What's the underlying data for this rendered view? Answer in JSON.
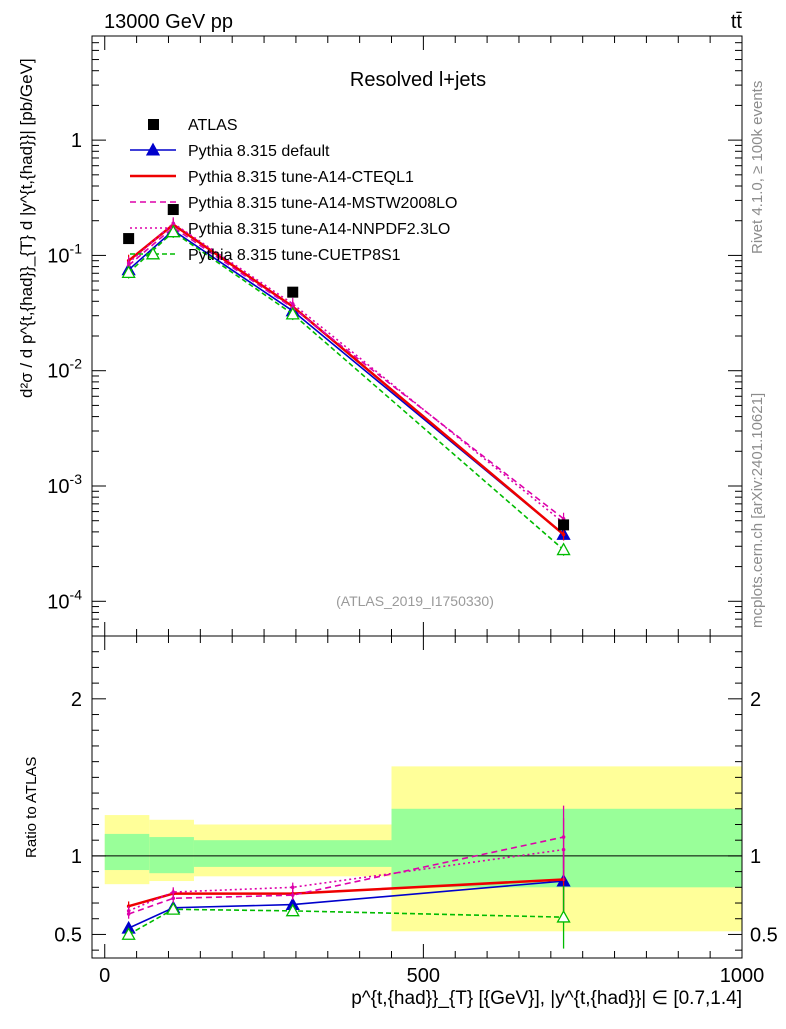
{
  "header": {
    "energy": "13000 GeV pp",
    "process": "tt̄"
  },
  "side_labels": {
    "rivet": "Rivet 4.1.0, ≥ 100k events",
    "site": "mcplots.cern.ch [arXiv:2401.10621]"
  },
  "chart_data": [
    {
      "type": "line",
      "title": "Resolved l+jets",
      "analysis": "(ATLAS_2019_I1750330)",
      "yscale": "log",
      "ylim": [
        5e-05,
        8
      ],
      "xlim": [
        -20,
        1000
      ],
      "ylabel": "d²σ / d p^{t,{had}}_{T} d |y^{t,{had}}| [pb/GeV]",
      "y_tick_labels": [
        "10^-4",
        "10^-3",
        "10^-2",
        "10^-1",
        "1"
      ],
      "x": [
        37.5,
        107.5,
        295,
        720
      ],
      "data": {
        "name": "ATLAS",
        "values": [
          0.14,
          0.25,
          0.048,
          0.00046
        ]
      },
      "series": [
        {
          "name": "Pythia 8.315 default",
          "color": "#0000cc",
          "dash": "",
          "marker": "triangle",
          "values": [
            0.075,
            0.165,
            0.033,
            0.00038
          ]
        },
        {
          "name": "Pythia 8.315 tune-A14-CTEQL1",
          "color": "#ee0000",
          "dash": "",
          "marker": "none",
          "values": [
            0.09,
            0.185,
            0.036,
            0.00038
          ]
        },
        {
          "name": "Pythia 8.315 tune-A14-MSTW2008LO",
          "color": "#dd00aa",
          "dash": "6,4",
          "marker": "none",
          "values": [
            0.082,
            0.175,
            0.035,
            0.00052
          ]
        },
        {
          "name": "Pythia 8.315 tune-A14-NNPDF2.3LO",
          "color": "#dd00aa",
          "dash": "2,3",
          "marker": "none",
          "values": [
            0.086,
            0.19,
            0.038,
            0.00048
          ]
        },
        {
          "name": "Pythia 8.315 tune-CUETP8S1",
          "color": "#00bb00",
          "dash": "5,3",
          "marker": "open-triangle",
          "values": [
            0.071,
            0.16,
            0.031,
            0.00028
          ]
        }
      ]
    },
    {
      "type": "line",
      "title": "Ratio to ATLAS",
      "ylabel": "Ratio to ATLAS",
      "ylim": [
        0.35,
        2.4
      ],
      "xlim": [
        -20,
        1000
      ],
      "xlabel": "p^{t,{had}}_{T} [{GeV}], |y^{t,{had}}| ∈ [0.7,1.4]",
      "x_ticks": [
        0,
        500,
        1000
      ],
      "y_ticks": [
        0.5,
        1,
        2
      ],
      "x": [
        37.5,
        107.5,
        295,
        720
      ],
      "bands": [
        {
          "x0": 0,
          "x1": 70,
          "yellow": [
            0.82,
            1.26
          ],
          "green": [
            0.91,
            1.14
          ]
        },
        {
          "x0": 70,
          "x1": 140,
          "yellow": [
            0.84,
            1.23
          ],
          "green": [
            0.89,
            1.12
          ]
        },
        {
          "x0": 140,
          "x1": 450,
          "yellow": [
            0.87,
            1.2
          ],
          "green": [
            0.93,
            1.1
          ]
        },
        {
          "x0": 450,
          "x1": 1000,
          "yellow": [
            0.52,
            1.57
          ],
          "green": [
            0.8,
            1.3
          ]
        }
      ],
      "series": [
        {
          "name": "Pythia 8.315 default",
          "values": [
            0.54,
            0.67,
            0.69,
            0.84
          ]
        },
        {
          "name": "Pythia 8.315 tune-A14-CTEQL1",
          "values": [
            0.68,
            0.76,
            0.76,
            0.85
          ]
        },
        {
          "name": "Pythia 8.315 tune-A14-MSTW2008LO",
          "values": [
            0.63,
            0.73,
            0.75,
            1.12
          ]
        },
        {
          "name": "Pythia 8.315 tune-A14-NNPDF2.3LO",
          "values": [
            0.65,
            0.77,
            0.8,
            1.04
          ]
        },
        {
          "name": "Pythia 8.315 tune-CUETP8S1",
          "values": [
            0.5,
            0.66,
            0.65,
            0.61
          ]
        }
      ]
    }
  ]
}
